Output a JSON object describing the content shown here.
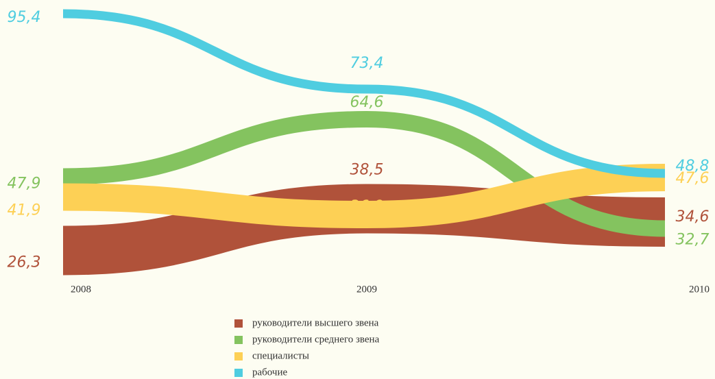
{
  "chart_data": {
    "type": "stream-line",
    "categories": [
      "2008",
      "2009",
      "2010"
    ],
    "series": [
      {
        "name": "руководители высшего звена",
        "color": "#b0523a",
        "values": [
          26.3,
          38.5,
          34.6
        ],
        "value_labels": [
          "26,3",
          "38,5",
          "34,6"
        ]
      },
      {
        "name": "руководители среднего звена",
        "color": "#84c35f",
        "values": [
          47.9,
          64.6,
          32.7
        ],
        "value_labels": [
          "47,9",
          "64,6",
          "32,7"
        ]
      },
      {
        "name": "специалисты",
        "color": "#fdd055",
        "values": [
          41.9,
          36.8,
          47.6
        ],
        "value_labels": [
          "41,9",
          "36,8",
          "47,6"
        ]
      },
      {
        "name": "рабочие",
        "color": "#4fcde0",
        "values": [
          95.4,
          73.4,
          48.8
        ],
        "value_labels": [
          "95,4",
          "73,4",
          "48,8"
        ]
      }
    ]
  }
}
